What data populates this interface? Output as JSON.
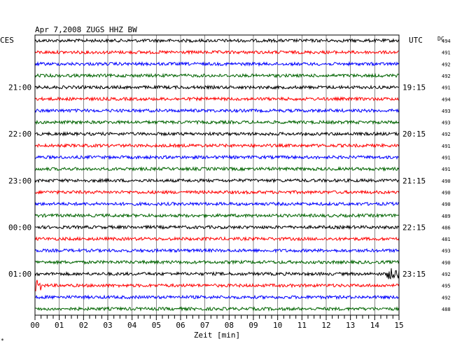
{
  "chart_data": {
    "type": "line",
    "title": "Apr 7,2008   ZUGS HHZ BW",
    "left_timezone": "CES",
    "right_timezone": "UTC",
    "dc_label": "DC",
    "xlabel": "Zeit [min]",
    "x_ticks": [
      "00",
      "01",
      "02",
      "03",
      "04",
      "05",
      "06",
      "07",
      "08",
      "09",
      "10",
      "11",
      "12",
      "13",
      "14",
      "15"
    ],
    "xlim": [
      0,
      15
    ],
    "grid": true,
    "trace_colors": [
      "#000000",
      "#ff0000",
      "#0000ff",
      "#006400"
    ],
    "hour_labels_left": [
      {
        "row": 4,
        "text": "21:00"
      },
      {
        "row": 8,
        "text": "22:00"
      },
      {
        "row": 12,
        "text": "23:00"
      },
      {
        "row": 16,
        "text": "00:00"
      },
      {
        "row": 20,
        "text": "01:00"
      }
    ],
    "hour_labels_right": [
      {
        "row": 4,
        "text": "19:15"
      },
      {
        "row": 8,
        "text": "20:15"
      },
      {
        "row": 12,
        "text": "21:15"
      },
      {
        "row": 16,
        "text": "22:15"
      },
      {
        "row": 20,
        "text": "23:15"
      }
    ],
    "dc_values": [
      "494",
      "491",
      "492",
      "492",
      "491",
      "494",
      "493",
      "493",
      "492",
      "491",
      "491",
      "491",
      "490",
      "490",
      "490",
      "489",
      "486",
      "481",
      "493",
      "490",
      "492",
      "495",
      "492",
      "488"
    ],
    "events": [
      {
        "row": 20,
        "start_min": 14.5,
        "end_min": 15.0,
        "amplitude": "large"
      },
      {
        "row": 21,
        "start_min": 0.0,
        "end_min": 0.3,
        "amplitude": "large"
      }
    ]
  },
  "footer_mark": "*"
}
